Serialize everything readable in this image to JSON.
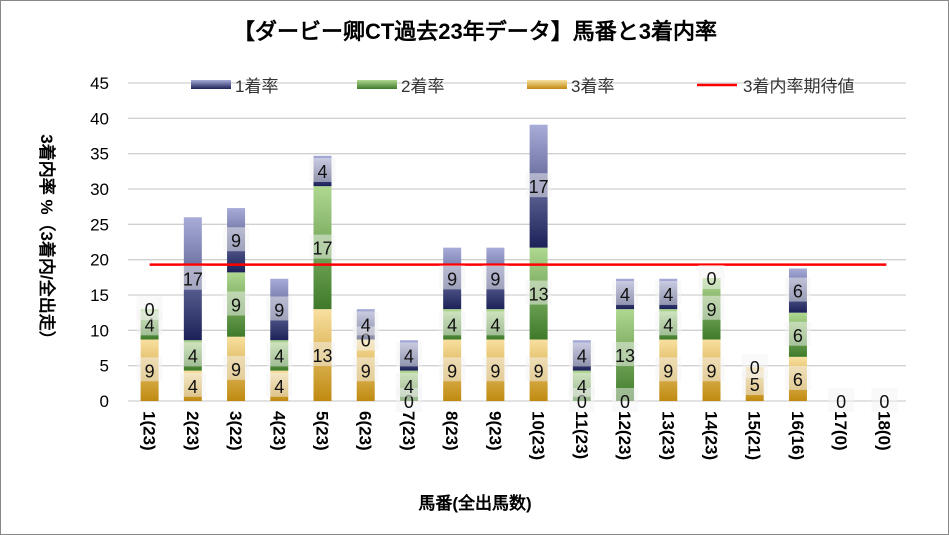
{
  "chart_data": {
    "type": "bar",
    "stacked": true,
    "title": "【ダービー卿CT過去23年データ】馬番と3着内率",
    "xlabel": "馬番(全出馬数)",
    "ylabel": "3着内率 %（3着内/全出走）",
    "ylim": [
      0,
      45
    ],
    "yticks": [
      0,
      5,
      10,
      15,
      20,
      25,
      30,
      35,
      40,
      45
    ],
    "grid": true,
    "legend_position": "top",
    "categories": [
      "1(23)",
      "2(23)",
      "3(22)",
      "4(23)",
      "5(23)",
      "6(23)",
      "7(23)",
      "8(23)",
      "9(23)",
      "10(23)",
      "11(23)",
      "12(23)",
      "13(23)",
      "14(23)",
      "15(21)",
      "16(16)",
      "17(0)",
      "18(0)"
    ],
    "series": [
      {
        "name": "3着率",
        "color": "#e0b040",
        "values": [
          8.7,
          4.3,
          9.1,
          4.3,
          13.0,
          8.7,
          0,
          8.7,
          8.7,
          8.7,
          0,
          0,
          8.7,
          8.7,
          4.8,
          6.25,
          0,
          0
        ],
        "labels": [
          "9",
          "4",
          "9",
          "4",
          "13",
          "9",
          "0",
          "9",
          "9",
          "9",
          "0",
          "0",
          "9",
          "9",
          "5",
          "6",
          "",
          ""
        ]
      },
      {
        "name": "2着率",
        "color": "#70a050",
        "values": [
          4.3,
          4.3,
          9.1,
          4.3,
          17.4,
          0,
          4.3,
          4.3,
          4.3,
          13.0,
          4.3,
          13.0,
          4.3,
          8.7,
          0,
          6.25,
          0,
          0
        ],
        "labels": [
          "4",
          "4",
          "9",
          "4",
          "17",
          "0",
          "4",
          "4",
          "4",
          "13",
          "4",
          "13",
          "4",
          "9",
          "0",
          "6",
          "",
          ""
        ]
      },
      {
        "name": "1着率",
        "color": "#4050a0",
        "values": [
          0,
          17.4,
          9.1,
          8.7,
          4.3,
          4.3,
          4.3,
          8.7,
          8.7,
          17.4,
          4.3,
          4.3,
          4.3,
          0,
          0,
          6.25,
          0,
          0
        ],
        "labels": [
          "0",
          "17",
          "9",
          "9",
          "4",
          "4",
          "4",
          "9",
          "9",
          "17",
          "4",
          "4",
          "4",
          "0",
          "",
          "6",
          "0",
          "0"
        ]
      }
    ],
    "reference_line": {
      "name": "3着内率期待値",
      "value": 19.3,
      "color": "#ff0000"
    }
  }
}
